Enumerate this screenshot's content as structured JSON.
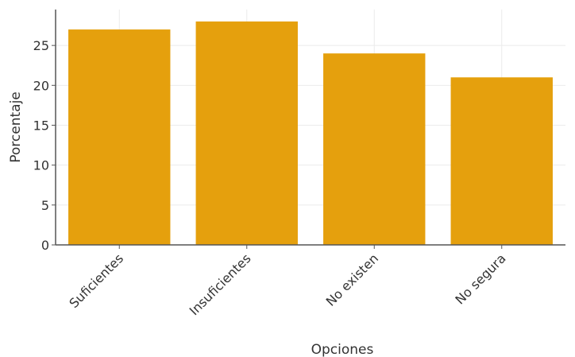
{
  "chart_data": {
    "type": "bar",
    "categories": [
      "Suficientes",
      "Insuficientes",
      "No existen",
      "No segura"
    ],
    "values": [
      27,
      28,
      24,
      21
    ],
    "xlabel": "Opciones",
    "ylabel": "Porcentaje",
    "ylim": [
      0,
      29.5
    ],
    "yticks": [
      0,
      5,
      10,
      15,
      20,
      25
    ],
    "grid": true,
    "bar_color": "#E5A00D",
    "grid_color": "#EBEBEB",
    "axis_color": "#555555"
  }
}
